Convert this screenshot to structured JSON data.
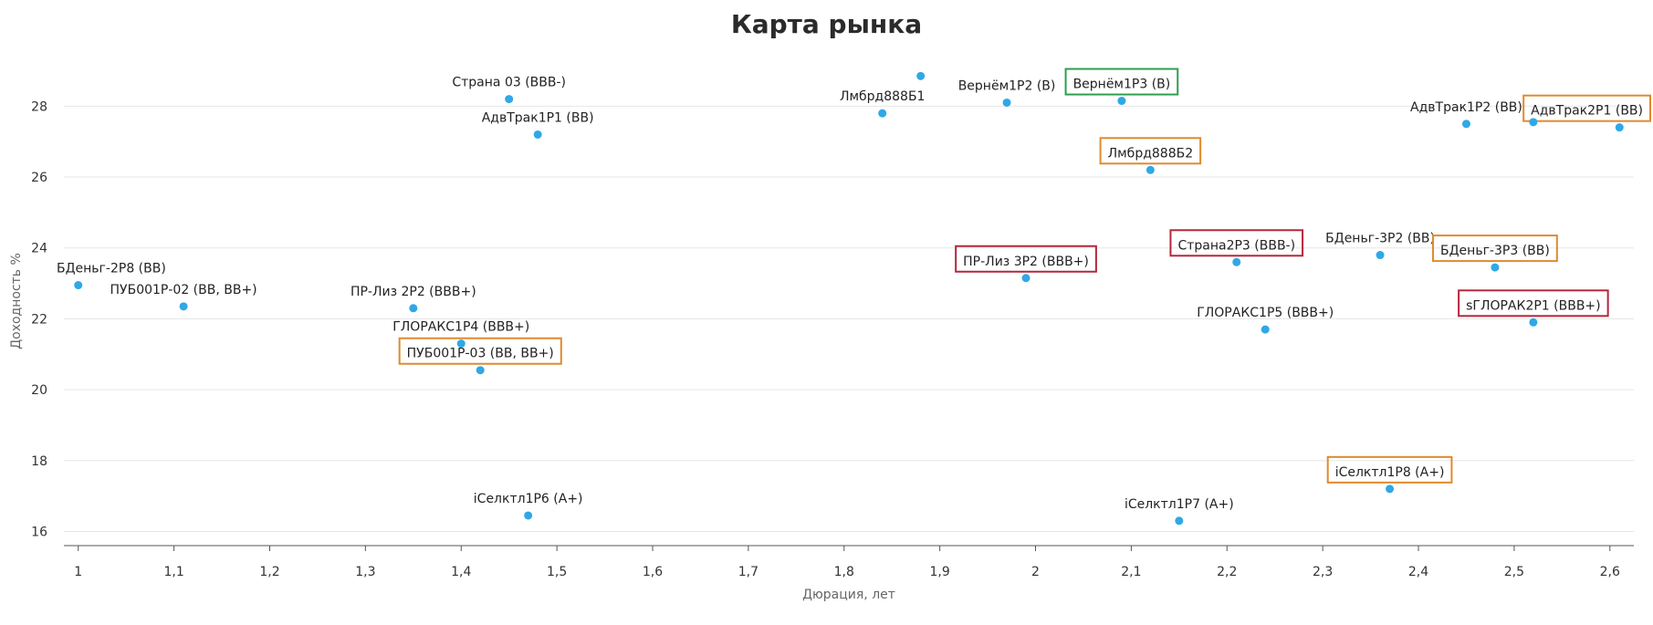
{
  "chart_data": {
    "type": "scatter",
    "title": "Карта рынка",
    "xlabel": "Дюрация, лет",
    "ylabel": "Доходность %",
    "xlim": [
      0.985,
      2.625
    ],
    "ylim": [
      15.6,
      29.4
    ],
    "x_ticks": [
      "1",
      "1,1",
      "1,2",
      "1,3",
      "1,4",
      "1,5",
      "1,6",
      "1,7",
      "1,8",
      "1,9",
      "2",
      "2,1",
      "2,2",
      "2,3",
      "2,4",
      "2,5",
      "2,6"
    ],
    "y_ticks": [
      16,
      18,
      20,
      22,
      24,
      26,
      28
    ],
    "grid": "horizontal",
    "marker_color": "#2fa8e6",
    "points": [
      {
        "label": "Страна 03 (BBB-)",
        "x": 1.45,
        "y": 28.2
      },
      {
        "label": "АдвТрак1Р1 (BB)",
        "x": 1.48,
        "y": 27.2
      },
      {
        "label": "",
        "x": 1.88,
        "y": 28.85
      },
      {
        "label": "Лмбрд888Б1",
        "x": 1.84,
        "y": 27.8
      },
      {
        "label": "Вернём1Р2 (B)",
        "x": 1.97,
        "y": 28.1
      },
      {
        "label": "Вернём1Р3 (B)",
        "x": 2.09,
        "y": 28.15,
        "box": "#2e9e4e"
      },
      {
        "label": "Лмбрд888Б2",
        "x": 2.12,
        "y": 26.2,
        "box": "#e08a2e"
      },
      {
        "label": "АдвТрак1Р2 (BB)",
        "x": 2.45,
        "y": 27.5
      },
      {
        "label": "АдвТрак2Р1 (BB)",
        "x": 2.61,
        "y": 27.4,
        "box": "#e08a2e"
      },
      {
        "label": "",
        "x": 2.52,
        "y": 27.55
      },
      {
        "label": "БДеньг-2Р8 (BB)",
        "x": 1.0,
        "y": 22.95
      },
      {
        "label": "ПУБ001Р-02 (BB, BB+)",
        "x": 1.11,
        "y": 22.35
      },
      {
        "label": "ПР-Лиз 2Р2 (BBB+)",
        "x": 1.35,
        "y": 22.3
      },
      {
        "label": "ГЛОРАКС1Р4 (BBB+)",
        "x": 1.4,
        "y": 21.3
      },
      {
        "label": "ПУБ001Р-03 (BB, BB+)",
        "x": 1.42,
        "y": 20.55,
        "box": "#e08a2e"
      },
      {
        "label": "ПР-Лиз 3Р2 (BBB+)",
        "x": 1.99,
        "y": 23.15,
        "box": "#b5263a"
      },
      {
        "label": "Страна2Р3 (BBB-)",
        "x": 2.21,
        "y": 23.6,
        "box": "#b5263a"
      },
      {
        "label": "БДеньг-3Р2 (BB)",
        "x": 2.36,
        "y": 23.8
      },
      {
        "label": "БДеньг-3Р3 (BB)",
        "x": 2.48,
        "y": 23.45,
        "box": "#e08a2e"
      },
      {
        "label": "ГЛОРАКС1Р5 (BBB+)",
        "x": 2.24,
        "y": 21.7
      },
      {
        "label": "sГЛОРАК2Р1 (BBB+)",
        "x": 2.52,
        "y": 21.9,
        "box": "#b5263a"
      },
      {
        "label": "iСелктл1Р6 (A+)",
        "x": 1.47,
        "y": 16.45
      },
      {
        "label": "iСелктл1Р7 (A+)",
        "x": 2.15,
        "y": 16.3
      },
      {
        "label": "iСелктл1Р8 (A+)",
        "x": 2.37,
        "y": 17.2,
        "box": "#e08a2e"
      }
    ]
  }
}
